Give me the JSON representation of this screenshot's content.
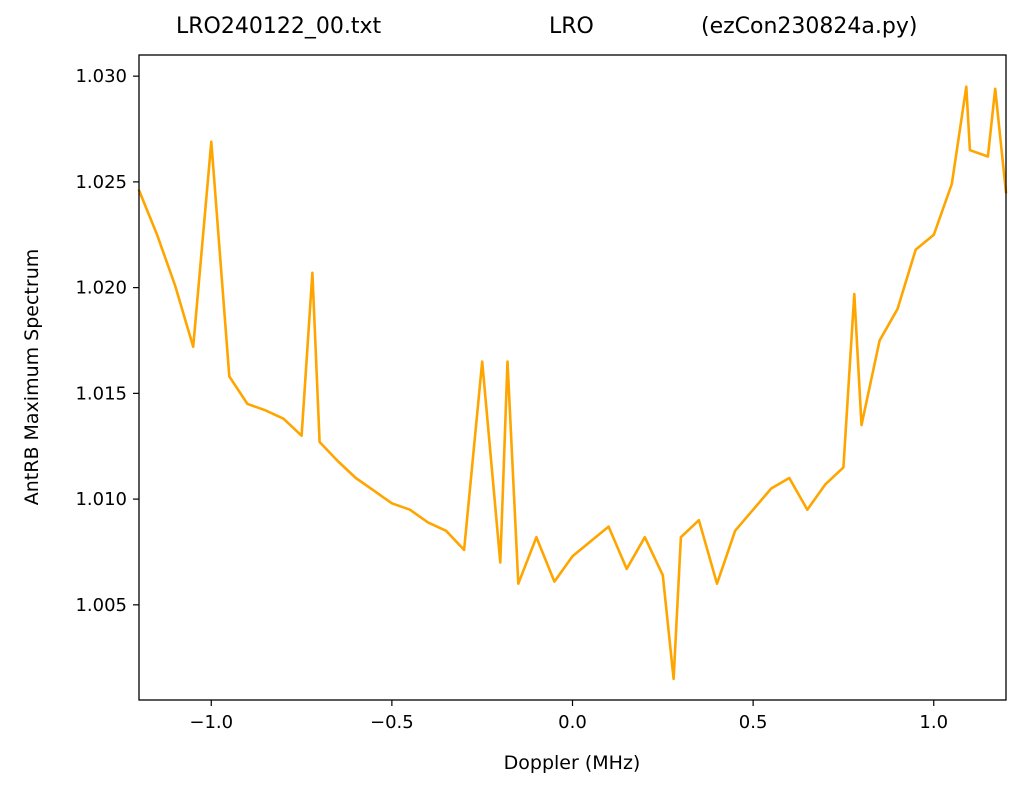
{
  "chart_data": {
    "type": "line",
    "title_left": "LRO240122_00.txt",
    "title_center": "LRO",
    "title_right": "(ezCon230824a.py)",
    "xlabel": "Doppler (MHz)",
    "ylabel": "AntRB Maximum Spectrum",
    "xlim": [
      -1.2,
      1.2
    ],
    "ylim": [
      1.0005,
      1.031
    ],
    "xticks": [
      -1.0,
      -0.5,
      0.0,
      0.5,
      1.0
    ],
    "xtick_labels": [
      "−1.0",
      "−0.5",
      "0.0",
      "0.5",
      "1.0"
    ],
    "yticks": [
      1.005,
      1.01,
      1.015,
      1.02,
      1.025,
      1.03
    ],
    "ytick_labels": [
      "1.005",
      "1.010",
      "1.015",
      "1.020",
      "1.025",
      "1.030"
    ],
    "grid": false,
    "line_color": "#ffa500",
    "series": [
      {
        "x": [
          -1.2,
          -1.15,
          -1.1,
          -1.05,
          -1.0,
          -0.95,
          -0.9,
          -0.85,
          -0.8,
          -0.75,
          -0.72,
          -0.7,
          -0.65,
          -0.6,
          -0.55,
          -0.5,
          -0.45,
          -0.4,
          -0.35,
          -0.3,
          -0.25,
          -0.2,
          -0.18,
          -0.15,
          -0.1,
          -0.05,
          0.0,
          0.05,
          0.1,
          0.15,
          0.2,
          0.25,
          0.28,
          0.3,
          0.35,
          0.4,
          0.45,
          0.5,
          0.55,
          0.6,
          0.65,
          0.7,
          0.75,
          0.78,
          0.8,
          0.85,
          0.9,
          0.95,
          1.0,
          1.05,
          1.09,
          1.1,
          1.15,
          1.17,
          1.2
        ],
        "y": [
          1.0246,
          1.0225,
          1.0201,
          1.0172,
          1.0269,
          1.0158,
          1.0145,
          1.0142,
          1.0138,
          1.013,
          1.0207,
          1.0127,
          1.0118,
          1.011,
          1.0104,
          1.0098,
          1.0095,
          1.0089,
          1.0085,
          1.0076,
          1.0165,
          1.007,
          1.0165,
          1.006,
          1.0082,
          1.0061,
          1.0073,
          1.008,
          1.0087,
          1.0067,
          1.0082,
          1.0064,
          1.0015,
          1.0082,
          1.009,
          1.006,
          1.0085,
          1.0095,
          1.0105,
          1.011,
          1.0095,
          1.0107,
          1.0115,
          1.0197,
          1.0135,
          1.0175,
          1.019,
          1.0218,
          1.0225,
          1.0249,
          1.0295,
          1.0265,
          1.0262,
          1.0294,
          1.0245
        ]
      }
    ]
  }
}
